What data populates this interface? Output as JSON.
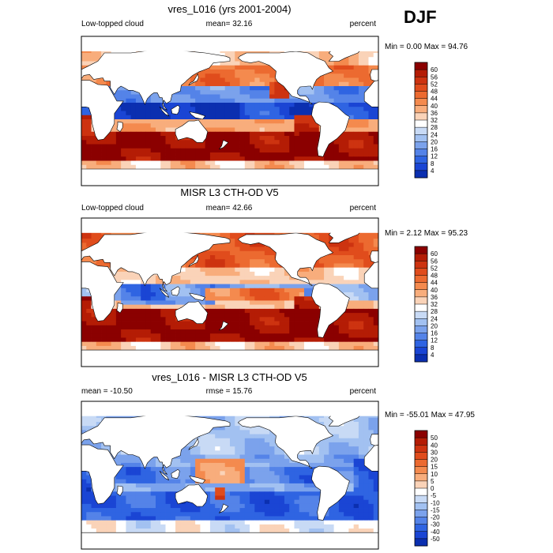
{
  "season": "DJF",
  "panels": [
    {
      "title": "vres_L016 (yrs 2001-2004)",
      "left_label": "Low-topped cloud",
      "center_label": "mean=  32.16",
      "right_label": "percent",
      "minmax": "Min =   0.00 Max =  94.76",
      "colorbar_labels": [
        "60",
        "56",
        "52",
        "48",
        "44",
        "40",
        "36",
        "32",
        "28",
        "24",
        "20",
        "16",
        "12",
        "8",
        "4"
      ],
      "colors": [
        "#8b0000",
        "#b41c05",
        "#cd3310",
        "#e04c1c",
        "#ec6a30",
        "#f48a4e",
        "#f8ad7c",
        "#fad3b8",
        "#ffffff",
        "#c8daf5",
        "#a2c1f1",
        "#7ba2ec",
        "#5483e8",
        "#2f64e2",
        "#1a45d4",
        "#0b2fb0"
      ],
      "map_style": "model"
    },
    {
      "title": "MISR L3 CTH-OD V5",
      "left_label": "Low-topped cloud",
      "center_label": "mean=  42.66",
      "right_label": "percent",
      "minmax": "Min =   2.12 Max =  95.23",
      "colorbar_labels": [
        "60",
        "56",
        "52",
        "48",
        "44",
        "40",
        "36",
        "32",
        "28",
        "24",
        "20",
        "16",
        "12",
        "8",
        "4"
      ],
      "colors": [
        "#8b0000",
        "#b41c05",
        "#cd3310",
        "#e04c1c",
        "#ec6a30",
        "#f48a4e",
        "#f8ad7c",
        "#fad3b8",
        "#ffffff",
        "#c8daf5",
        "#a2c1f1",
        "#7ba2ec",
        "#5483e8",
        "#2f64e2",
        "#1a45d4",
        "#0b2fb0"
      ],
      "map_style": "obs"
    },
    {
      "title": "vres_L016 - MISR L3 CTH-OD V5",
      "left_label": "mean = -10.50",
      "center_label": "rmse =  15.76",
      "right_label": "percent",
      "minmax": "Min = -55.01 Max =  47.95",
      "colorbar_labels": [
        "50",
        "40",
        "30",
        "20",
        "15",
        "10",
        "5",
        "0",
        "-5",
        "-10",
        "-15",
        "-20",
        "-30",
        "-40",
        "-50"
      ],
      "colors": [
        "#8b0000",
        "#b41c05",
        "#cd3310",
        "#e04c1c",
        "#ec6a30",
        "#f48a4e",
        "#f8ad7c",
        "#fad3b8",
        "#ffffff",
        "#c8daf5",
        "#a2c1f1",
        "#7ba2ec",
        "#5483e8",
        "#2f64e2",
        "#1a45d4",
        "#0b2fb0"
      ],
      "map_style": "diff"
    }
  ]
}
